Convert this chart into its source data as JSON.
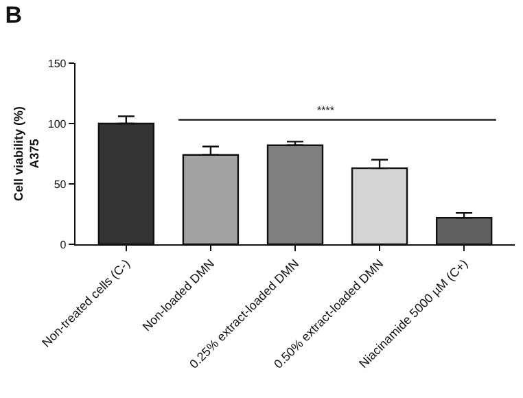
{
  "chart_data": {
    "type": "bar",
    "title": "B",
    "ylabel": "Cell viability (%)\nA375",
    "categories": [
      "Non-treated cells (C-)",
      "Non-loaded DMN",
      "0.25% extract-loaded DMN",
      "0.50% extract-loaded DMN",
      "Niacinamide 5000 µM (C+)"
    ],
    "values": [
      100,
      74,
      82,
      63,
      22
    ],
    "colors": [
      "#333333",
      "#a3a3a3",
      "#7f7f7f",
      "#d4d4d4",
      "#616161"
    ],
    "errors": [
      [
        100,
        106
      ],
      [
        74,
        81
      ],
      [
        82,
        85
      ],
      [
        63,
        70
      ],
      [
        22,
        26
      ]
    ],
    "ylim": [
      0,
      150
    ],
    "yticks": [
      0,
      50,
      100,
      150
    ],
    "annotations": [
      "****"
    ]
  }
}
